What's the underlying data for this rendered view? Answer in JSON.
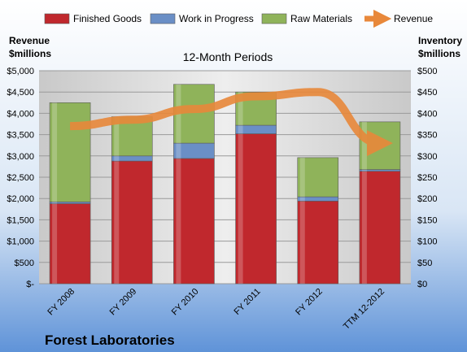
{
  "chart_data": {
    "type": "bar",
    "subtitle": "12-Month Periods",
    "company": "Forest Laboratories",
    "categories": [
      "FY 2008",
      "FY 2009",
      "FY 2010",
      "FY 2011",
      "FY 2012",
      "TTM 12-2012"
    ],
    "series": [
      {
        "name": "Finished Goods",
        "axis": "right",
        "color": "#c0282d",
        "values": [
          188,
          288,
          294,
          352,
          194,
          264
        ]
      },
      {
        "name": "Work in Progress",
        "axis": "right",
        "color": "#6a8fc6",
        "values": [
          4,
          12,
          36,
          20,
          10,
          4
        ]
      },
      {
        "name": "Raw Materials",
        "axis": "right",
        "color": "#8fb35a",
        "values": [
          233,
          92,
          138,
          78,
          92,
          112
        ]
      },
      {
        "name": "Revenue",
        "axis": "left",
        "type": "line",
        "color": "#e8883a",
        "values": [
          3700,
          3850,
          4100,
          4400,
          4500,
          3300
        ]
      }
    ],
    "left_axis": {
      "label_line1": "Revenue",
      "label_line2": "$millions",
      "ylim": [
        0,
        5000
      ],
      "ticks": [
        "$5,000",
        "$4,500",
        "$4,000",
        "$3,500",
        "$3,000",
        "$2,500",
        "$2,000",
        "$1,500",
        "$1,000",
        "$500",
        "$-"
      ]
    },
    "right_axis": {
      "label_line1": "Inventory",
      "label_line2": "$millions",
      "ylim": [
        0,
        500
      ],
      "ticks": [
        "$500",
        "$450",
        "$400",
        "$350",
        "$300",
        "$250",
        "$200",
        "$150",
        "$100",
        "$50",
        "$0"
      ]
    },
    "grid": true,
    "legend_position": "top"
  }
}
